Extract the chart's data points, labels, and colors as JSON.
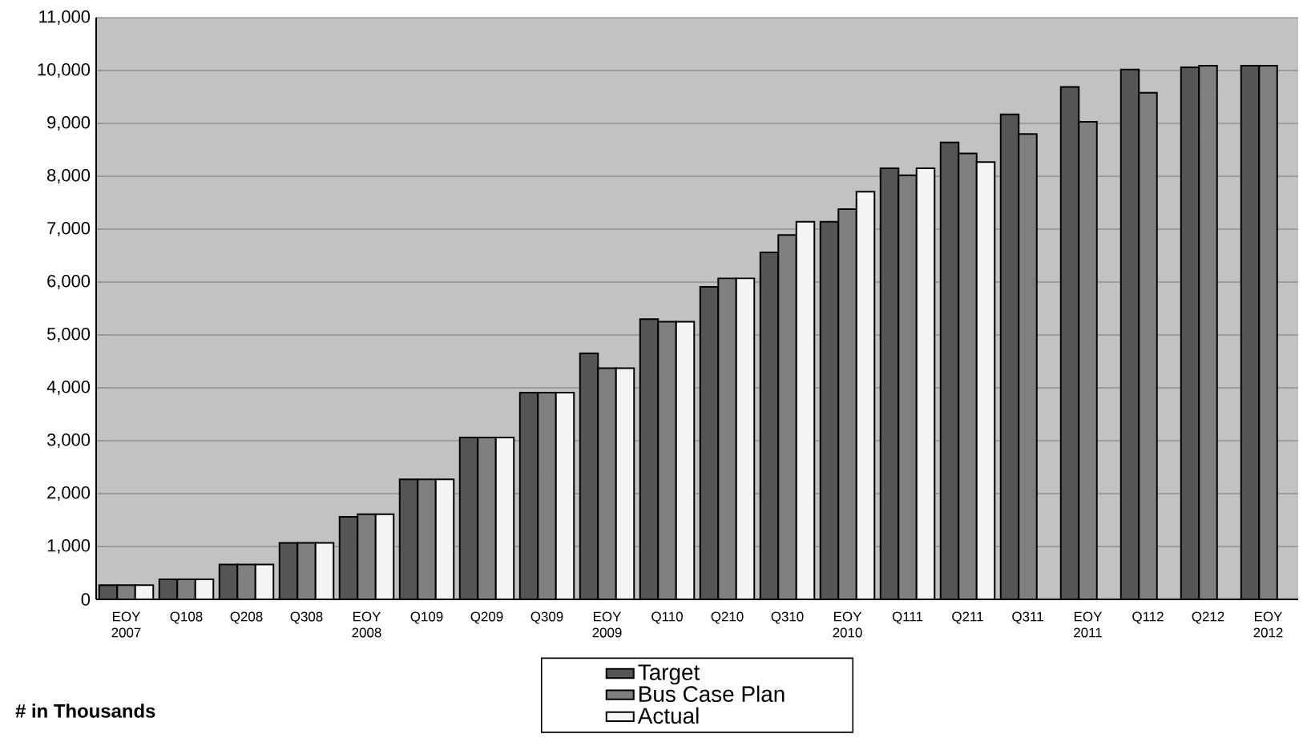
{
  "chart_data": {
    "type": "bar",
    "categories": [
      "EOY 2007",
      "Q108",
      "Q208",
      "Q308",
      "EOY 2008",
      "Q109",
      "Q209",
      "Q309",
      "EOY 2009",
      "Q110",
      "Q210",
      "Q310",
      "EOY 2010",
      "Q111",
      "Q211",
      "Q311",
      "EOY 2011",
      "Q112",
      "Q212",
      "EOY 2012"
    ],
    "series": [
      {
        "name": "Target",
        "color": "#555555",
        "values": [
          270,
          380,
          660,
          1070,
          1560,
          2270,
          3060,
          3910,
          4650,
          5300,
          5910,
          6560,
          7140,
          8150,
          8640,
          9170,
          9690,
          10020,
          10060,
          10090
        ]
      },
      {
        "name": "Bus Case Plan",
        "color": "#808080",
        "values": [
          270,
          380,
          660,
          1070,
          1610,
          2270,
          3060,
          3910,
          4370,
          5250,
          6070,
          6890,
          7380,
          8020,
          8430,
          8800,
          9030,
          9580,
          10090,
          10090
        ]
      },
      {
        "name": "Actual",
        "color": "#f4f4f4",
        "values": [
          270,
          380,
          660,
          1070,
          1610,
          2270,
          3060,
          3910,
          4370,
          5250,
          6070,
          7140,
          7710,
          8150,
          8270,
          null,
          null,
          null,
          null,
          null
        ]
      }
    ],
    "ylim": [
      0,
      11000
    ],
    "yticks": [
      0,
      {
        "value": 1000,
        "label": "1,000"
      },
      {
        "value": 2000,
        "label": "2,000"
      },
      {
        "value": 3000,
        "label": "3,000"
      },
      {
        "value": 4000,
        "label": "4,000"
      },
      {
        "value": 5000,
        "label": "5,000"
      },
      {
        "value": 6000,
        "label": "6,000"
      },
      {
        "value": 7000,
        "label": "7,000"
      },
      {
        "value": 8000,
        "label": "8,000"
      },
      {
        "value": 9000,
        "label": "9,000"
      },
      {
        "value": 10000,
        "label": "10,000"
      },
      {
        "value": 11000,
        "label": "11,000"
      }
    ],
    "grid": "y",
    "legend": "bottom",
    "annotations": [
      "# in Thousands"
    ]
  }
}
